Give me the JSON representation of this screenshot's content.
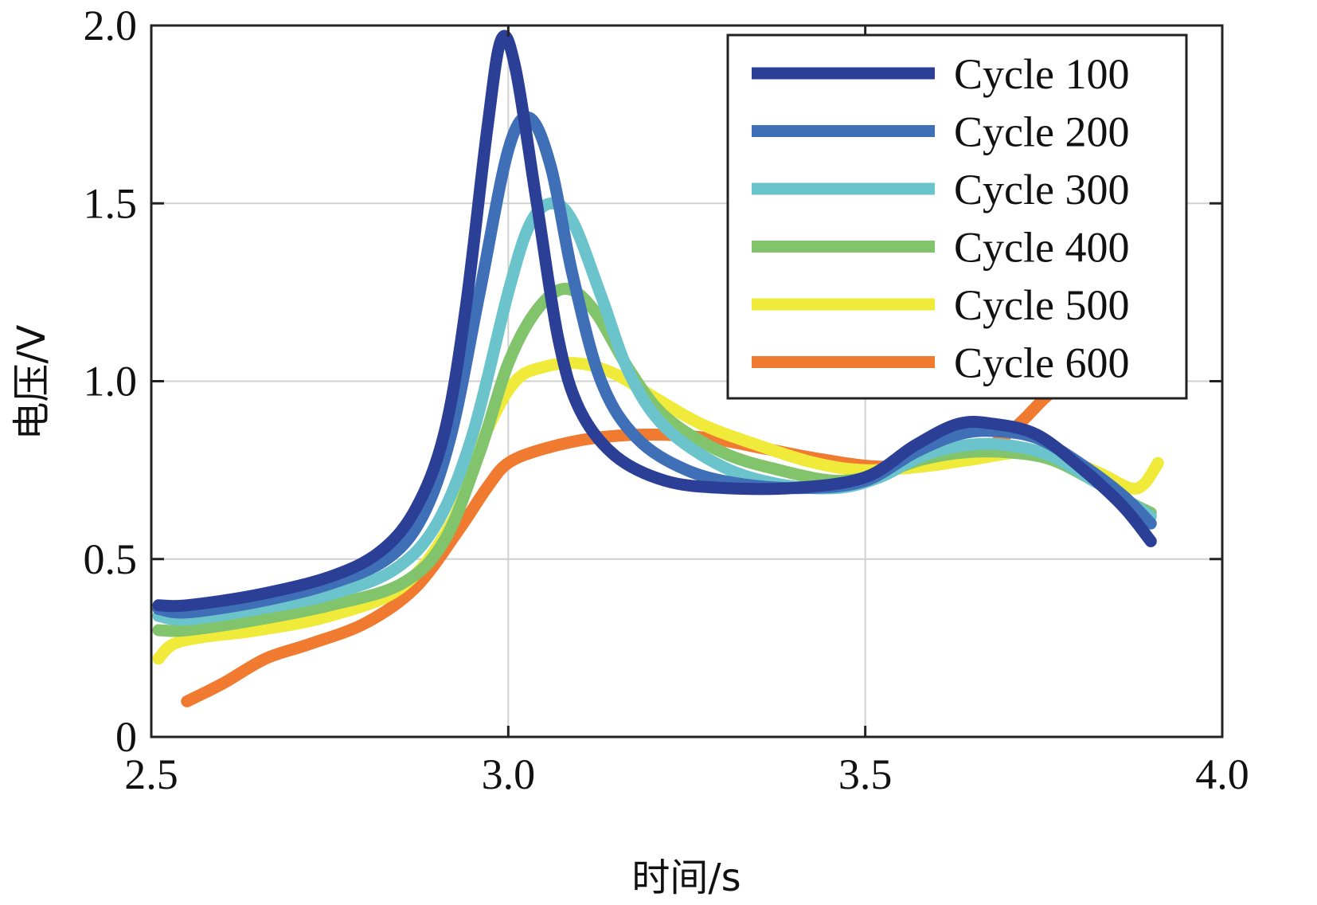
{
  "chart_data": {
    "type": "line",
    "title": "",
    "xlabel": "时间/s",
    "ylabel": "电压/V",
    "xlim": [
      2.5,
      4.0
    ],
    "ylim": [
      0,
      2.0
    ],
    "xticks": [
      2.5,
      3.0,
      3.5,
      4.0
    ],
    "xtick_labels": [
      "2.5",
      "3.0",
      "3.5",
      "4.0"
    ],
    "yticks": [
      0,
      0.5,
      1.0,
      1.5,
      2.0
    ],
    "ytick_labels": [
      "0",
      "0.5",
      "1.0",
      "1.5",
      "2.0"
    ],
    "grid": true,
    "legend_position": "top-right",
    "series": [
      {
        "name": "Cycle 100",
        "color": "#2b3f97",
        "x": [
          2.51,
          2.55,
          2.65,
          2.75,
          2.82,
          2.87,
          2.91,
          2.94,
          2.97,
          2.99,
          3.01,
          3.04,
          3.07,
          3.1,
          3.15,
          3.22,
          3.3,
          3.4,
          3.5,
          3.57,
          3.63,
          3.68,
          3.74,
          3.8,
          3.86,
          3.9
        ],
        "y": [
          0.37,
          0.37,
          0.4,
          0.45,
          0.52,
          0.64,
          0.85,
          1.2,
          1.7,
          1.96,
          1.88,
          1.5,
          1.12,
          0.92,
          0.79,
          0.72,
          0.7,
          0.7,
          0.73,
          0.82,
          0.88,
          0.88,
          0.85,
          0.76,
          0.65,
          0.55
        ]
      },
      {
        "name": "Cycle 200",
        "color": "#3f6fb6",
        "x": [
          2.51,
          2.55,
          2.65,
          2.75,
          2.83,
          2.88,
          2.92,
          2.96,
          3.0,
          3.03,
          3.06,
          3.09,
          3.13,
          3.18,
          3.25,
          3.33,
          3.42,
          3.5,
          3.57,
          3.63,
          3.68,
          3.74,
          3.8,
          3.86,
          3.9
        ],
        "y": [
          0.36,
          0.35,
          0.38,
          0.43,
          0.5,
          0.62,
          0.85,
          1.25,
          1.65,
          1.74,
          1.6,
          1.3,
          1.0,
          0.84,
          0.75,
          0.71,
          0.7,
          0.72,
          0.8,
          0.85,
          0.86,
          0.84,
          0.77,
          0.68,
          0.6
        ]
      },
      {
        "name": "Cycle 300",
        "color": "#6bc4cc",
        "x": [
          2.51,
          2.55,
          2.65,
          2.75,
          2.84,
          2.9,
          2.95,
          3.0,
          3.03,
          3.06,
          3.09,
          3.13,
          3.17,
          3.22,
          3.3,
          3.38,
          3.46,
          3.52,
          3.58,
          3.64,
          3.7,
          3.76,
          3.82,
          3.87,
          3.9
        ],
        "y": [
          0.34,
          0.33,
          0.36,
          0.4,
          0.47,
          0.6,
          0.85,
          1.25,
          1.44,
          1.5,
          1.45,
          1.24,
          1.02,
          0.87,
          0.76,
          0.71,
          0.7,
          0.73,
          0.79,
          0.82,
          0.82,
          0.79,
          0.72,
          0.66,
          0.62
        ]
      },
      {
        "name": "Cycle 400",
        "color": "#82c46c",
        "x": [
          2.51,
          2.55,
          2.65,
          2.75,
          2.85,
          2.91,
          2.96,
          3.0,
          3.04,
          3.08,
          3.12,
          3.17,
          3.22,
          3.3,
          3.38,
          3.46,
          3.52,
          3.58,
          3.64,
          3.7,
          3.76,
          3.82,
          3.87,
          3.9
        ],
        "y": [
          0.3,
          0.3,
          0.33,
          0.37,
          0.43,
          0.55,
          0.8,
          1.05,
          1.2,
          1.26,
          1.2,
          1.03,
          0.9,
          0.8,
          0.75,
          0.72,
          0.74,
          0.78,
          0.8,
          0.8,
          0.78,
          0.72,
          0.66,
          0.63
        ]
      },
      {
        "name": "Cycle 500",
        "color": "#f0ea3a",
        "x": [
          2.51,
          2.53,
          2.57,
          2.65,
          2.75,
          2.85,
          2.92,
          2.97,
          3.01,
          3.05,
          3.1,
          3.15,
          3.2,
          3.27,
          3.35,
          3.43,
          3.5,
          3.58,
          3.65,
          3.72,
          3.78,
          3.83,
          3.87,
          3.89,
          3.91
        ],
        "y": [
          0.22,
          0.26,
          0.28,
          0.3,
          0.34,
          0.42,
          0.6,
          0.86,
          1.0,
          1.04,
          1.05,
          1.02,
          0.96,
          0.88,
          0.82,
          0.77,
          0.75,
          0.76,
          0.78,
          0.8,
          0.78,
          0.74,
          0.7,
          0.71,
          0.77
        ]
      },
      {
        "name": "Cycle 600",
        "color": "#ef7a30",
        "x": [
          2.55,
          2.6,
          2.66,
          2.72,
          2.8,
          2.87,
          2.93,
          2.97,
          3.0,
          3.05,
          3.12,
          3.2,
          3.28,
          3.36,
          3.44,
          3.52,
          3.6,
          3.66,
          3.71,
          3.75,
          3.78
        ],
        "y": [
          0.1,
          0.15,
          0.22,
          0.26,
          0.32,
          0.42,
          0.58,
          0.7,
          0.77,
          0.81,
          0.84,
          0.85,
          0.84,
          0.81,
          0.78,
          0.76,
          0.77,
          0.8,
          0.87,
          0.95,
          1.0
        ]
      }
    ]
  }
}
